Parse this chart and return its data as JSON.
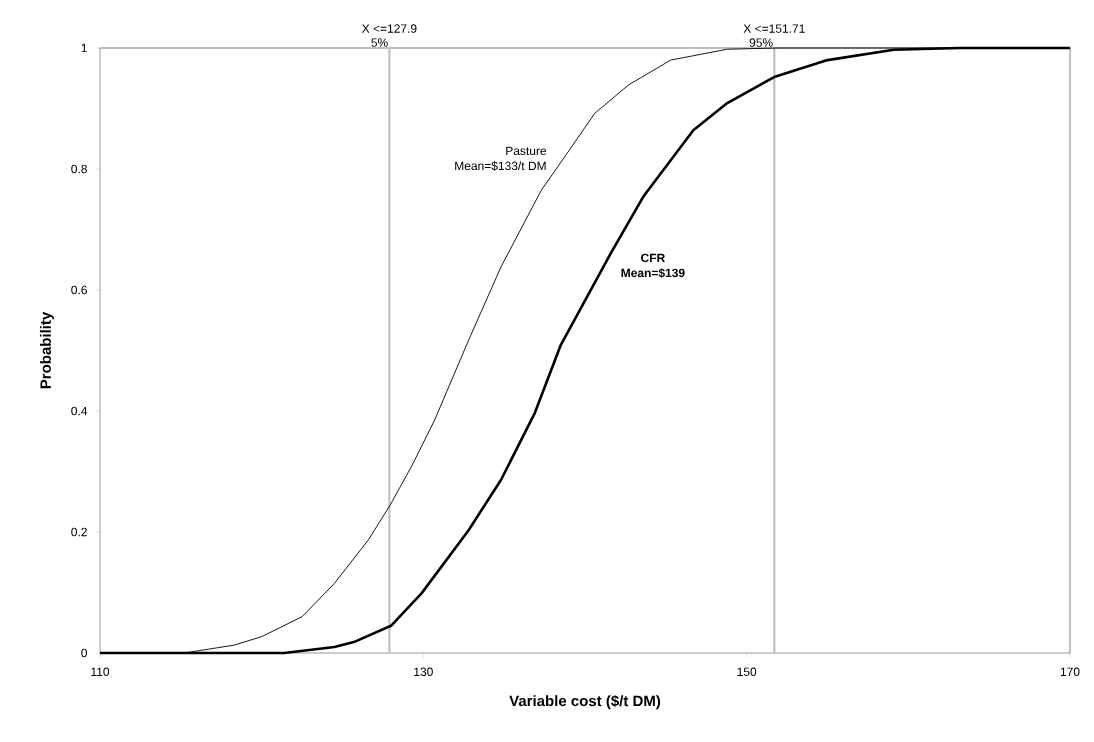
{
  "chart_data": {
    "type": "line",
    "xlabel": "Variable cost ($/t DM)",
    "ylabel": "Probability",
    "xlim": [
      110,
      170
    ],
    "xticks": [
      110,
      130,
      150,
      170
    ],
    "ylim": [
      0,
      1
    ],
    "yticks": [
      0,
      0.2,
      0.4,
      0.6,
      0.8,
      1
    ],
    "grid": false,
    "legend": false,
    "marker": "none",
    "line_style": "solid",
    "series": [
      {
        "name": "Pasture",
        "color": "#000000",
        "x": [
          110,
          115.2,
          118.3,
          120,
          122.5,
          124.5,
          126.6,
          127.96,
          129.3,
          130.7,
          132.8,
          134.8,
          137.3,
          139,
          140.6,
          142.7,
          145.3,
          148.8,
          152,
          170
        ],
        "values": [
          0,
          0,
          0.013,
          0.027,
          0.06,
          0.115,
          0.187,
          0.245,
          0.31,
          0.385,
          0.517,
          0.638,
          0.765,
          0.83,
          0.892,
          0.939,
          0.98,
          0.998,
          1,
          1
        ]
      },
      {
        "name": "CFR",
        "color": "#000000",
        "x": [
          110,
          121.4,
          124.5,
          125.7,
          128,
          129.9,
          132.8,
          134.8,
          136.9,
          138.5,
          141.6,
          143.6,
          146.7,
          148.8,
          151.7,
          155,
          159.1,
          163.2,
          170
        ],
        "values": [
          0,
          0,
          0.01,
          0.018,
          0.045,
          0.099,
          0.203,
          0.286,
          0.397,
          0.509,
          0.661,
          0.754,
          0.864,
          0.909,
          0.952,
          0.98,
          0.997,
          1,
          1
        ]
      }
    ],
    "ref_lines": [
      {
        "axis": "x",
        "value": 127.9,
        "label": "X <=127.9",
        "color": "#c0c0c0"
      },
      {
        "axis": "x",
        "value": 151.71,
        "label": "X <=151.71",
        "color": "#c0c0c0"
      }
    ],
    "annotations": [
      {
        "text": "5%",
        "x": 127.9,
        "y": 1
      },
      {
        "text": "95%",
        "x": 151.71,
        "y": 1
      },
      "Mean=$133/t DM",
      "Mean=$139"
    ]
  }
}
